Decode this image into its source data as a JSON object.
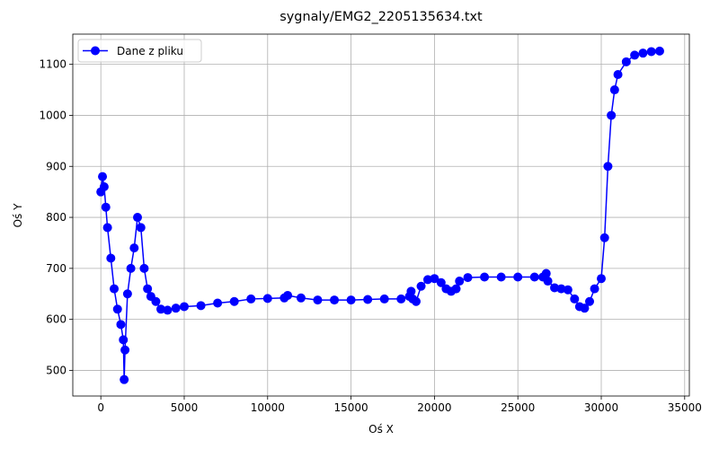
{
  "chart_data": {
    "type": "line",
    "title": "sygnaly/EMG2_2205135634.txt",
    "x_label": "Oś X",
    "y_label": "Oś Y",
    "xlim": [
      -1680,
      35280
    ],
    "ylim": [
      449.75,
      1159.25
    ],
    "xticks": [
      0,
      5000,
      10000,
      15000,
      20000,
      25000,
      30000,
      35000
    ],
    "yticks": [
      500,
      600,
      700,
      800,
      900,
      1000,
      1100
    ],
    "grid": true,
    "legend": "upper left",
    "x": [
      0,
      100,
      200,
      300,
      400,
      600,
      800,
      1000,
      1200,
      1350,
      1400,
      1450,
      1600,
      1800,
      2000,
      2200,
      2400,
      2600,
      2800,
      3000,
      3300,
      3600,
      4000,
      4500,
      5000,
      6000,
      7000,
      8000,
      9000,
      10000,
      11000,
      11200,
      12000,
      13000,
      14000,
      15000,
      16000,
      17000,
      18000,
      18500,
      18600,
      18700,
      18900,
      19200,
      19600,
      20000,
      20400,
      20700,
      21000,
      21300,
      21500,
      22000,
      23000,
      24000,
      25000,
      26000,
      26500,
      26700,
      26800,
      27200,
      27600,
      28000,
      28400,
      28700,
      29000,
      29300,
      29600,
      30000,
      30200,
      30400,
      30600,
      30800,
      31000,
      31500,
      32000,
      32500,
      33000,
      33500
    ],
    "series": [
      {
        "name": "Dane z pliku",
        "color": "#0000ff",
        "values": [
          850,
          880,
          860,
          820,
          780,
          720,
          660,
          620,
          590,
          560,
          482,
          540,
          650,
          700,
          740,
          800,
          780,
          700,
          660,
          645,
          635,
          620,
          618,
          622,
          625,
          627,
          632,
          635,
          640,
          641,
          642,
          647,
          642,
          638,
          638,
          638,
          639,
          640,
          640,
          645,
          655,
          640,
          635,
          665,
          678,
          680,
          672,
          660,
          655,
          660,
          675,
          682,
          683,
          683,
          683,
          683,
          683,
          690,
          675,
          662,
          660,
          658,
          640,
          625,
          622,
          635,
          660,
          680,
          760,
          900,
          1000,
          1050,
          1080,
          1105,
          1118,
          1122,
          1125,
          1126
        ]
      }
    ]
  }
}
